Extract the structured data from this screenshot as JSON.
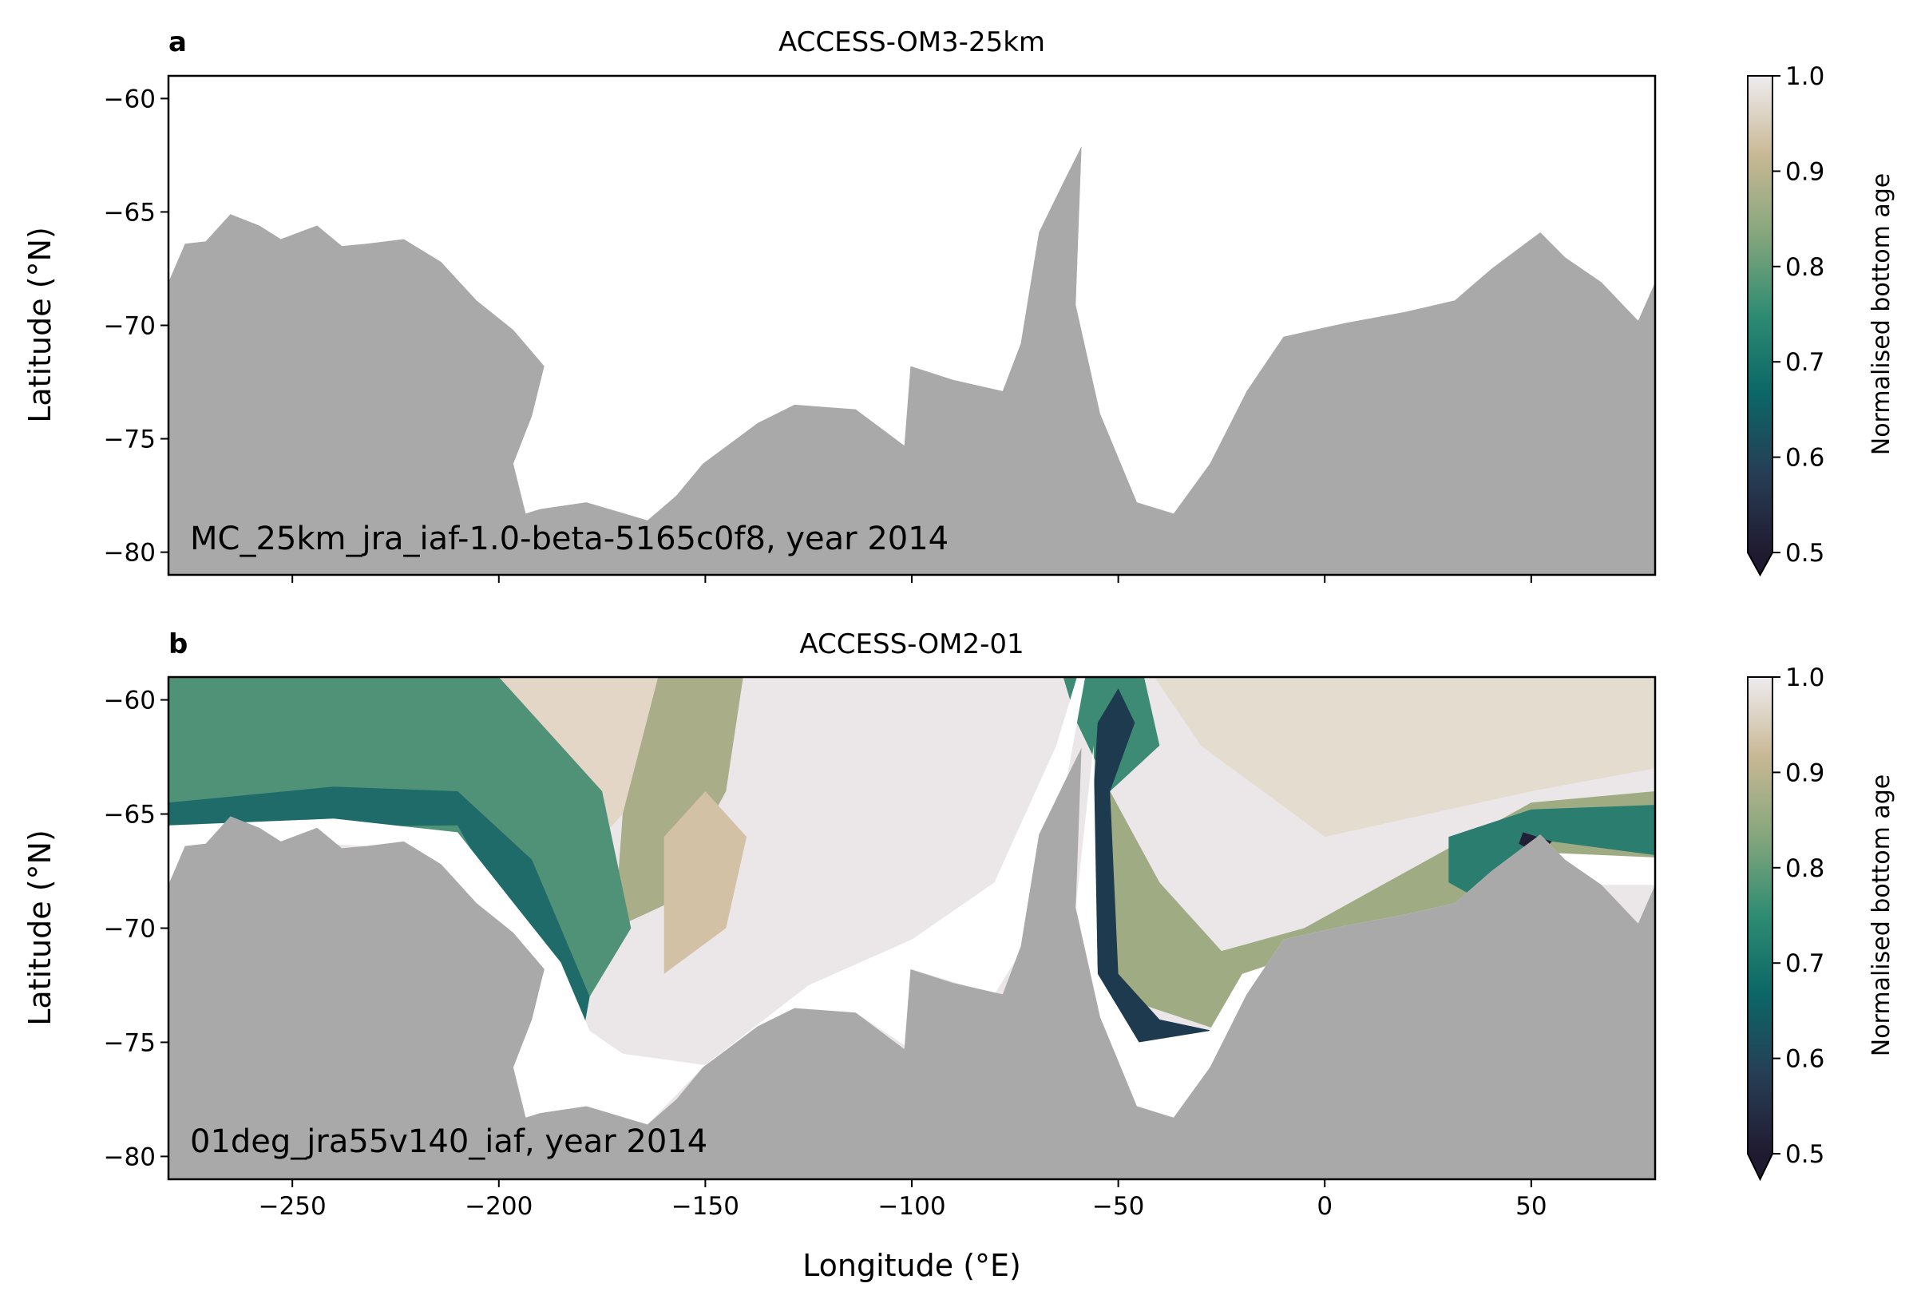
{
  "chart_data": [
    {
      "type": "heatmap",
      "panel_label": "a",
      "title": "ACCESS-OM3-25km",
      "annotation": "MC_25km_jra_iaf-1.0-beta-5165c0f8, year 2014",
      "xlabel": "",
      "ylabel": "Latitude (°N)",
      "xlim": [
        -280,
        80
      ],
      "ylim": [
        -81,
        -59
      ],
      "xticks": [
        -250,
        -200,
        -150,
        -100,
        -50,
        0,
        50
      ],
      "xtick_labels_shown": false,
      "yticks": [
        -60,
        -65,
        -70,
        -75,
        -80
      ],
      "ytick_labels": [
        "−60",
        "−65",
        "−70",
        "−75",
        "−80"
      ],
      "field": "no data (blank ocean)",
      "land_color": "#a9a9a9",
      "colorbar": {
        "label": "Normalised bottom age",
        "range": [
          0.5,
          1.0
        ],
        "ticks": [
          "0.5",
          "0.6",
          "0.7",
          "0.8",
          "0.9",
          "1.0"
        ],
        "extend": "min",
        "colormap": [
          "#201a30",
          "#263e55",
          "#0b6666",
          "#2e8c72",
          "#85a67c",
          "#c8b894",
          "#eeecef"
        ]
      }
    },
    {
      "type": "heatmap",
      "panel_label": "b",
      "title": "ACCESS-OM2-01",
      "annotation": "01deg_jra55v140_iaf, year 2014",
      "xlabel": "Longitude (°E)",
      "ylabel": "Latitude (°N)",
      "xlim": [
        -280,
        80
      ],
      "ylim": [
        -81,
        -59
      ],
      "xticks": [
        -250,
        -200,
        -150,
        -100,
        -50,
        0,
        50
      ],
      "xtick_labels": [
        "−250",
        "−200",
        "−150",
        "−100",
        "−50",
        "0",
        "50"
      ],
      "yticks": [
        -60,
        -65,
        -70,
        -75,
        -80
      ],
      "ytick_labels": [
        "−60",
        "−65",
        "−70",
        "−75",
        "−80"
      ],
      "field": "normalised bottom age, ~0.5–1.0; low values (dark teal) along Antarctic shelf slopes in Ross, Weddell and East Antarctic sectors; high values (near 1.0) in central Pacific and Weddell gyre",
      "land_color": "#a9a9a9",
      "colorbar": {
        "label": "Normalised bottom age",
        "range": [
          0.5,
          1.0
        ],
        "ticks": [
          "0.5",
          "0.6",
          "0.7",
          "0.8",
          "0.9",
          "1.0"
        ],
        "extend": "min",
        "colormap": [
          "#201a30",
          "#263e55",
          "#0b6666",
          "#2e8c72",
          "#85a67c",
          "#c8b894",
          "#eeecef"
        ]
      }
    }
  ]
}
